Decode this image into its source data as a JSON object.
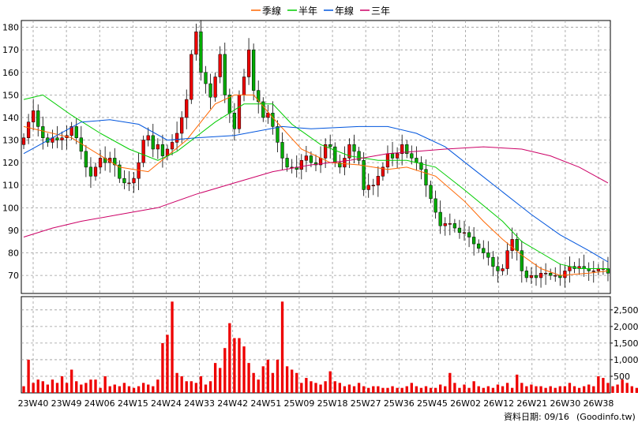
{
  "legend": {
    "items": [
      {
        "label": "季線",
        "color": "#ff6600"
      },
      {
        "label": "半年",
        "color": "#00cc00"
      },
      {
        "label": "年線",
        "color": "#0055dd"
      },
      {
        "label": "三年",
        "color": "#cc0066"
      }
    ]
  },
  "footer": {
    "date_label": "資料日期: 09/16",
    "source_label": "(Goodinfo.tw)"
  },
  "chart_data": [
    {
      "type": "candlestick",
      "x_tick_labels": [
        "23W40",
        "23W49",
        "24W06",
        "24W15",
        "24W24",
        "24W33",
        "24W42",
        "24W51",
        "25W09",
        "25W18",
        "25W27",
        "25W36",
        "25W45",
        "26W02",
        "26W12",
        "26W21",
        "26W30",
        "26W38"
      ],
      "ylim": [
        62,
        183
      ],
      "y_ticks": [
        70,
        80,
        90,
        100,
        110,
        120,
        130,
        140,
        150,
        160,
        170,
        180
      ],
      "colors": {
        "up": "#ee0000",
        "down": "#00aa00"
      },
      "grid": true,
      "weekly_close": [
        131,
        138,
        143,
        136,
        131,
        129,
        131,
        130,
        131,
        132,
        136,
        131,
        125,
        118,
        114,
        118,
        122,
        120,
        122,
        119,
        113,
        111,
        111,
        113,
        120,
        130,
        132,
        126,
        128,
        123,
        126,
        129,
        133,
        140,
        148,
        168,
        178,
        160,
        155,
        149,
        158,
        168,
        150,
        142,
        135,
        150,
        158,
        170,
        152,
        147,
        140,
        142,
        136,
        129,
        122,
        118,
        118,
        117,
        121,
        123,
        120,
        119,
        122,
        128,
        127,
        120,
        118,
        122,
        128,
        125,
        121,
        108,
        110,
        110,
        114,
        118,
        124,
        122,
        124,
        128,
        124,
        122,
        120,
        117,
        110,
        104,
        98,
        92,
        93,
        93,
        91,
        89,
        89,
        87,
        84,
        82,
        80,
        78,
        74,
        72,
        73,
        81,
        86,
        81,
        72,
        69,
        70,
        69,
        71,
        71,
        70,
        70,
        69,
        72,
        74,
        73,
        74,
        73,
        72,
        72,
        73,
        73,
        71
      ],
      "series": [
        {
          "name": "季線",
          "color": "#ff6600",
          "points": [
            [
              0,
              136
            ],
            [
              10,
              131
            ],
            [
              20,
              118
            ],
            [
              26,
              116
            ],
            [
              34,
              130
            ],
            [
              40,
              146
            ],
            [
              44,
              150
            ],
            [
              48,
              150
            ],
            [
              52,
              140
            ],
            [
              58,
              126
            ],
            [
              64,
              120
            ],
            [
              70,
              119
            ],
            [
              76,
              117
            ],
            [
              80,
              118
            ],
            [
              86,
              114
            ],
            [
              92,
              103
            ],
            [
              96,
              94
            ],
            [
              100,
              86
            ],
            [
              104,
              79
            ],
            [
              108,
              73
            ],
            [
              112,
              70
            ],
            [
              118,
              71
            ],
            [
              122,
              72
            ]
          ]
        },
        {
          "name": "半年",
          "color": "#00cc00",
          "points": [
            [
              0,
              148
            ],
            [
              4,
              150
            ],
            [
              10,
              141
            ],
            [
              16,
              133
            ],
            [
              22,
              126
            ],
            [
              28,
              121
            ],
            [
              32,
              125
            ],
            [
              40,
              138
            ],
            [
              46,
              146
            ],
            [
              52,
              146
            ],
            [
              56,
              137
            ],
            [
              62,
              128
            ],
            [
              68,
              123
            ],
            [
              74,
              121
            ],
            [
              80,
              121
            ],
            [
              86,
              118
            ],
            [
              92,
              108
            ],
            [
              100,
              94
            ],
            [
              104,
              85
            ],
            [
              108,
              80
            ],
            [
              112,
              75
            ],
            [
              116,
              73
            ],
            [
              122,
              73
            ]
          ]
        },
        {
          "name": "年線",
          "color": "#0055dd",
          "points": [
            [
              0,
              124
            ],
            [
              6,
              131
            ],
            [
              12,
              138
            ],
            [
              18,
              139
            ],
            [
              24,
              137
            ],
            [
              30,
              130
            ],
            [
              36,
              131
            ],
            [
              44,
              132
            ],
            [
              54,
              136
            ],
            [
              60,
              135
            ],
            [
              70,
              136
            ],
            [
              76,
              136
            ],
            [
              82,
              133
            ],
            [
              88,
              127
            ],
            [
              94,
              117
            ],
            [
              100,
              107
            ],
            [
              106,
              97
            ],
            [
              112,
              88
            ],
            [
              118,
              81
            ],
            [
              122,
              76
            ]
          ]
        },
        {
          "name": "三年",
          "color": "#cc0066",
          "points": [
            [
              0,
              87
            ],
            [
              6,
              91
            ],
            [
              12,
              94
            ],
            [
              20,
              97
            ],
            [
              28,
              100
            ],
            [
              36,
              106
            ],
            [
              44,
              111
            ],
            [
              52,
              116
            ],
            [
              60,
              119
            ],
            [
              68,
              121
            ],
            [
              76,
              124
            ],
            [
              82,
              125
            ],
            [
              88,
              126
            ],
            [
              96,
              127
            ],
            [
              104,
              126
            ],
            [
              110,
              123
            ],
            [
              116,
              118
            ],
            [
              122,
              111
            ]
          ]
        }
      ]
    },
    {
      "type": "bar",
      "name": "volume",
      "ylim": [
        0,
        2900
      ],
      "y_tick_labels": [
        "500",
        "1,000",
        "1,500",
        "2,000",
        "2,500"
      ],
      "y_tick_values": [
        500,
        1000,
        1500,
        2000,
        2500
      ],
      "color": "#ee0000",
      "values": [
        200,
        1000,
        300,
        400,
        350,
        250,
        400,
        300,
        500,
        300,
        700,
        350,
        250,
        300,
        400,
        400,
        150,
        500,
        200,
        250,
        200,
        300,
        200,
        150,
        200,
        300,
        250,
        200,
        400,
        1500,
        1750,
        2750,
        600,
        500,
        350,
        350,
        300,
        500,
        250,
        350,
        900,
        750,
        1350,
        2100,
        1650,
        1650,
        1400,
        900,
        600,
        400,
        800,
        1000,
        600,
        1000,
        2750,
        800,
        700,
        600,
        300,
        450,
        350,
        300,
        250,
        350,
        650,
        350,
        300,
        200,
        250,
        200,
        300,
        200,
        150,
        200,
        200,
        150,
        150,
        200,
        150,
        150,
        200,
        300,
        200,
        150,
        200,
        150,
        150,
        250,
        200,
        600,
        300,
        150,
        250,
        150,
        350,
        200,
        150,
        200,
        150,
        250,
        200,
        300,
        150,
        550,
        300,
        200,
        250,
        200,
        200,
        150,
        200,
        150,
        200,
        200,
        300,
        200,
        150,
        200,
        250,
        200,
        500,
        450,
        300,
        200,
        250,
        400,
        300,
        200,
        150
      ]
    }
  ]
}
